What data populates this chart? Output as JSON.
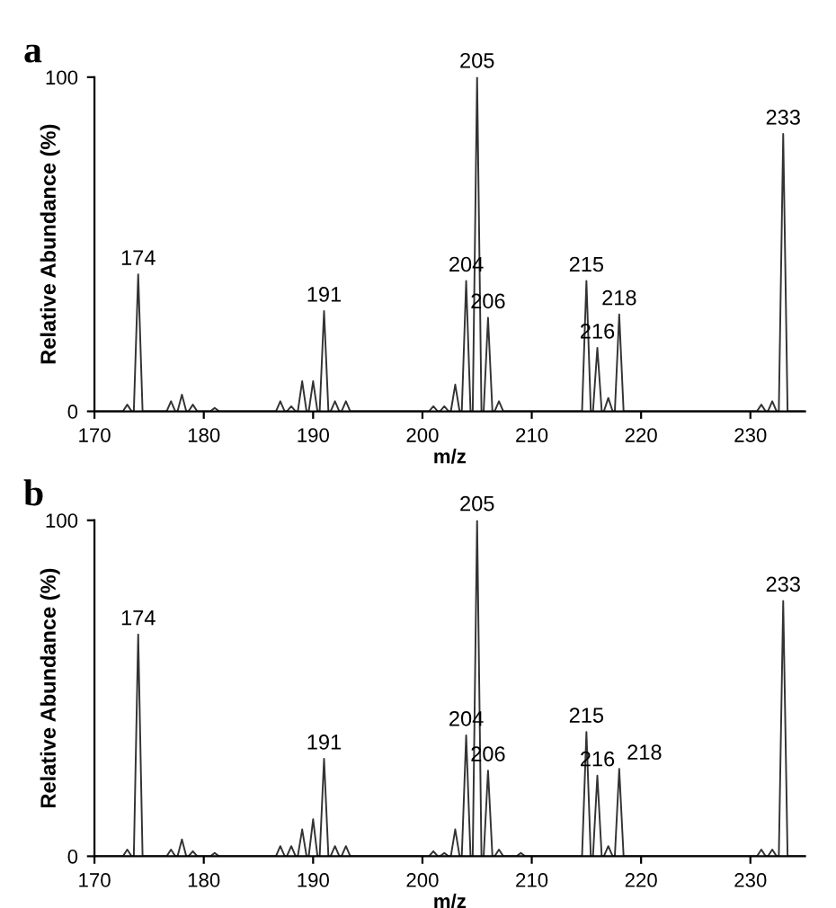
{
  "chart_data": [
    {
      "type": "line",
      "title": "a",
      "xlabel": "m/z",
      "ylabel": "Relative Abundance (%)",
      "xlim": [
        170,
        235
      ],
      "xticks": [
        170,
        180,
        190,
        200,
        210,
        220,
        230
      ],
      "ylim": [
        0,
        100
      ],
      "yticks": [
        0,
        100
      ],
      "grid": false,
      "legend": false,
      "marker": "none",
      "line_style": "solid",
      "series": [
        {
          "color": "#333333",
          "x": [
            170,
            172.6,
            173,
            173.4,
            173.6,
            174,
            174.4,
            176.6,
            177,
            177.4,
            177.6,
            178,
            178.4,
            178.6,
            179,
            179.4,
            180.6,
            181,
            181.4,
            186.6,
            187,
            187.4,
            187.6,
            188,
            188.4,
            188.6,
            189,
            189.4,
            189.6,
            190,
            190.4,
            190.6,
            191,
            191.4,
            191.6,
            192,
            192.4,
            192.6,
            193,
            193.4,
            200.6,
            201,
            201.4,
            201.6,
            202,
            202.4,
            202.6,
            203,
            203.4,
            203.6,
            204,
            204.4,
            204.6,
            205,
            205.4,
            205.6,
            206,
            206.4,
            206.6,
            207,
            207.4,
            214.6,
            215,
            215.4,
            215.6,
            216,
            216.4,
            216.6,
            217,
            217.4,
            217.6,
            218,
            218.4,
            230.6,
            231,
            231.4,
            231.6,
            232,
            232.4,
            232.6,
            233,
            233.4,
            235
          ],
          "values": [
            0,
            0,
            2,
            0,
            0,
            41,
            0,
            0,
            3,
            0,
            0,
            5,
            0,
            0,
            2,
            0,
            0,
            1,
            0,
            0,
            3,
            0,
            0,
            1.5,
            0,
            0,
            9,
            0,
            0,
            9,
            0,
            0,
            30,
            0,
            0,
            3,
            0,
            0,
            3,
            0,
            0,
            1.5,
            0,
            0,
            1.5,
            0,
            0,
            8,
            0,
            0,
            39,
            0,
            0,
            100,
            0,
            0,
            28,
            0,
            0,
            3,
            0,
            0,
            39,
            0,
            0,
            19,
            0,
            0,
            4,
            0,
            0,
            29,
            0,
            0,
            2,
            0,
            0,
            3,
            0,
            0,
            83,
            0,
            0
          ]
        }
      ],
      "annotations": [
        {
          "text": "174",
          "x": 174,
          "y": 41
        },
        {
          "text": "191",
          "x": 191,
          "y": 30
        },
        {
          "text": "204",
          "x": 204,
          "y": 39
        },
        {
          "text": "205",
          "x": 205,
          "y": 100
        },
        {
          "text": "206",
          "x": 206,
          "y": 28
        },
        {
          "text": "215",
          "x": 215,
          "y": 39
        },
        {
          "text": "216",
          "x": 216,
          "y": 19
        },
        {
          "text": "218",
          "x": 218,
          "y": 29
        },
        {
          "text": "233",
          "x": 233,
          "y": 83
        }
      ]
    },
    {
      "type": "line",
      "title": "b",
      "xlabel": "m/z",
      "ylabel": "Relative Abundance (%)",
      "xlim": [
        170,
        235
      ],
      "xticks": [
        170,
        180,
        190,
        200,
        210,
        220,
        230
      ],
      "ylim": [
        0,
        100
      ],
      "yticks": [
        0,
        100
      ],
      "grid": false,
      "legend": false,
      "marker": "none",
      "line_style": "solid",
      "series": [
        {
          "color": "#333333",
          "x": [
            170,
            172.6,
            173,
            173.4,
            173.6,
            174,
            174.4,
            176.6,
            177,
            177.4,
            177.6,
            178,
            178.4,
            178.6,
            179,
            179.4,
            180.6,
            181,
            181.4,
            186.6,
            187,
            187.4,
            187.6,
            188,
            188.4,
            188.6,
            189,
            189.4,
            189.6,
            190,
            190.4,
            190.6,
            191,
            191.4,
            191.6,
            192,
            192.4,
            192.6,
            193,
            193.4,
            200.6,
            201,
            201.4,
            201.6,
            202,
            202.4,
            202.6,
            203,
            203.4,
            203.6,
            204,
            204.4,
            204.6,
            205,
            205.4,
            205.6,
            206,
            206.4,
            206.6,
            207,
            207.4,
            208.6,
            209,
            209.4,
            214.6,
            215,
            215.4,
            215.6,
            216,
            216.4,
            216.6,
            217,
            217.4,
            217.6,
            218,
            218.4,
            230.6,
            231,
            231.4,
            231.6,
            232,
            232.4,
            232.6,
            233,
            233.4,
            235
          ],
          "values": [
            0,
            0,
            2,
            0,
            0,
            66,
            0,
            0,
            2,
            0,
            0,
            5,
            0,
            0,
            1.5,
            0,
            0,
            1,
            0,
            0,
            3,
            0,
            0,
            3,
            0,
            0,
            8,
            0,
            0,
            11,
            0,
            0,
            29,
            0,
            0,
            3,
            0,
            0,
            3,
            0,
            0,
            1.5,
            0,
            0,
            1,
            0,
            0,
            8,
            0,
            0,
            36,
            0,
            0,
            100,
            0,
            0,
            25.5,
            0,
            0,
            2,
            0,
            0,
            1,
            0,
            0,
            37,
            0,
            0,
            24,
            0,
            0,
            3,
            0,
            0,
            26,
            0,
            0,
            2,
            0,
            0,
            2,
            0,
            0,
            76,
            0,
            0
          ]
        }
      ],
      "annotations": [
        {
          "text": "174",
          "x": 174,
          "y": 66
        },
        {
          "text": "191",
          "x": 191,
          "y": 29
        },
        {
          "text": "204",
          "x": 204,
          "y": 36
        },
        {
          "text": "205",
          "x": 205,
          "y": 100
        },
        {
          "text": "206",
          "x": 206,
          "y": 25.5
        },
        {
          "text": "215",
          "x": 215,
          "y": 37
        },
        {
          "text": "216",
          "x": 216,
          "y": 24
        },
        {
          "text": "218",
          "x": 218,
          "y": 26
        },
        {
          "text": "233",
          "x": 233,
          "y": 76
        }
      ]
    }
  ]
}
